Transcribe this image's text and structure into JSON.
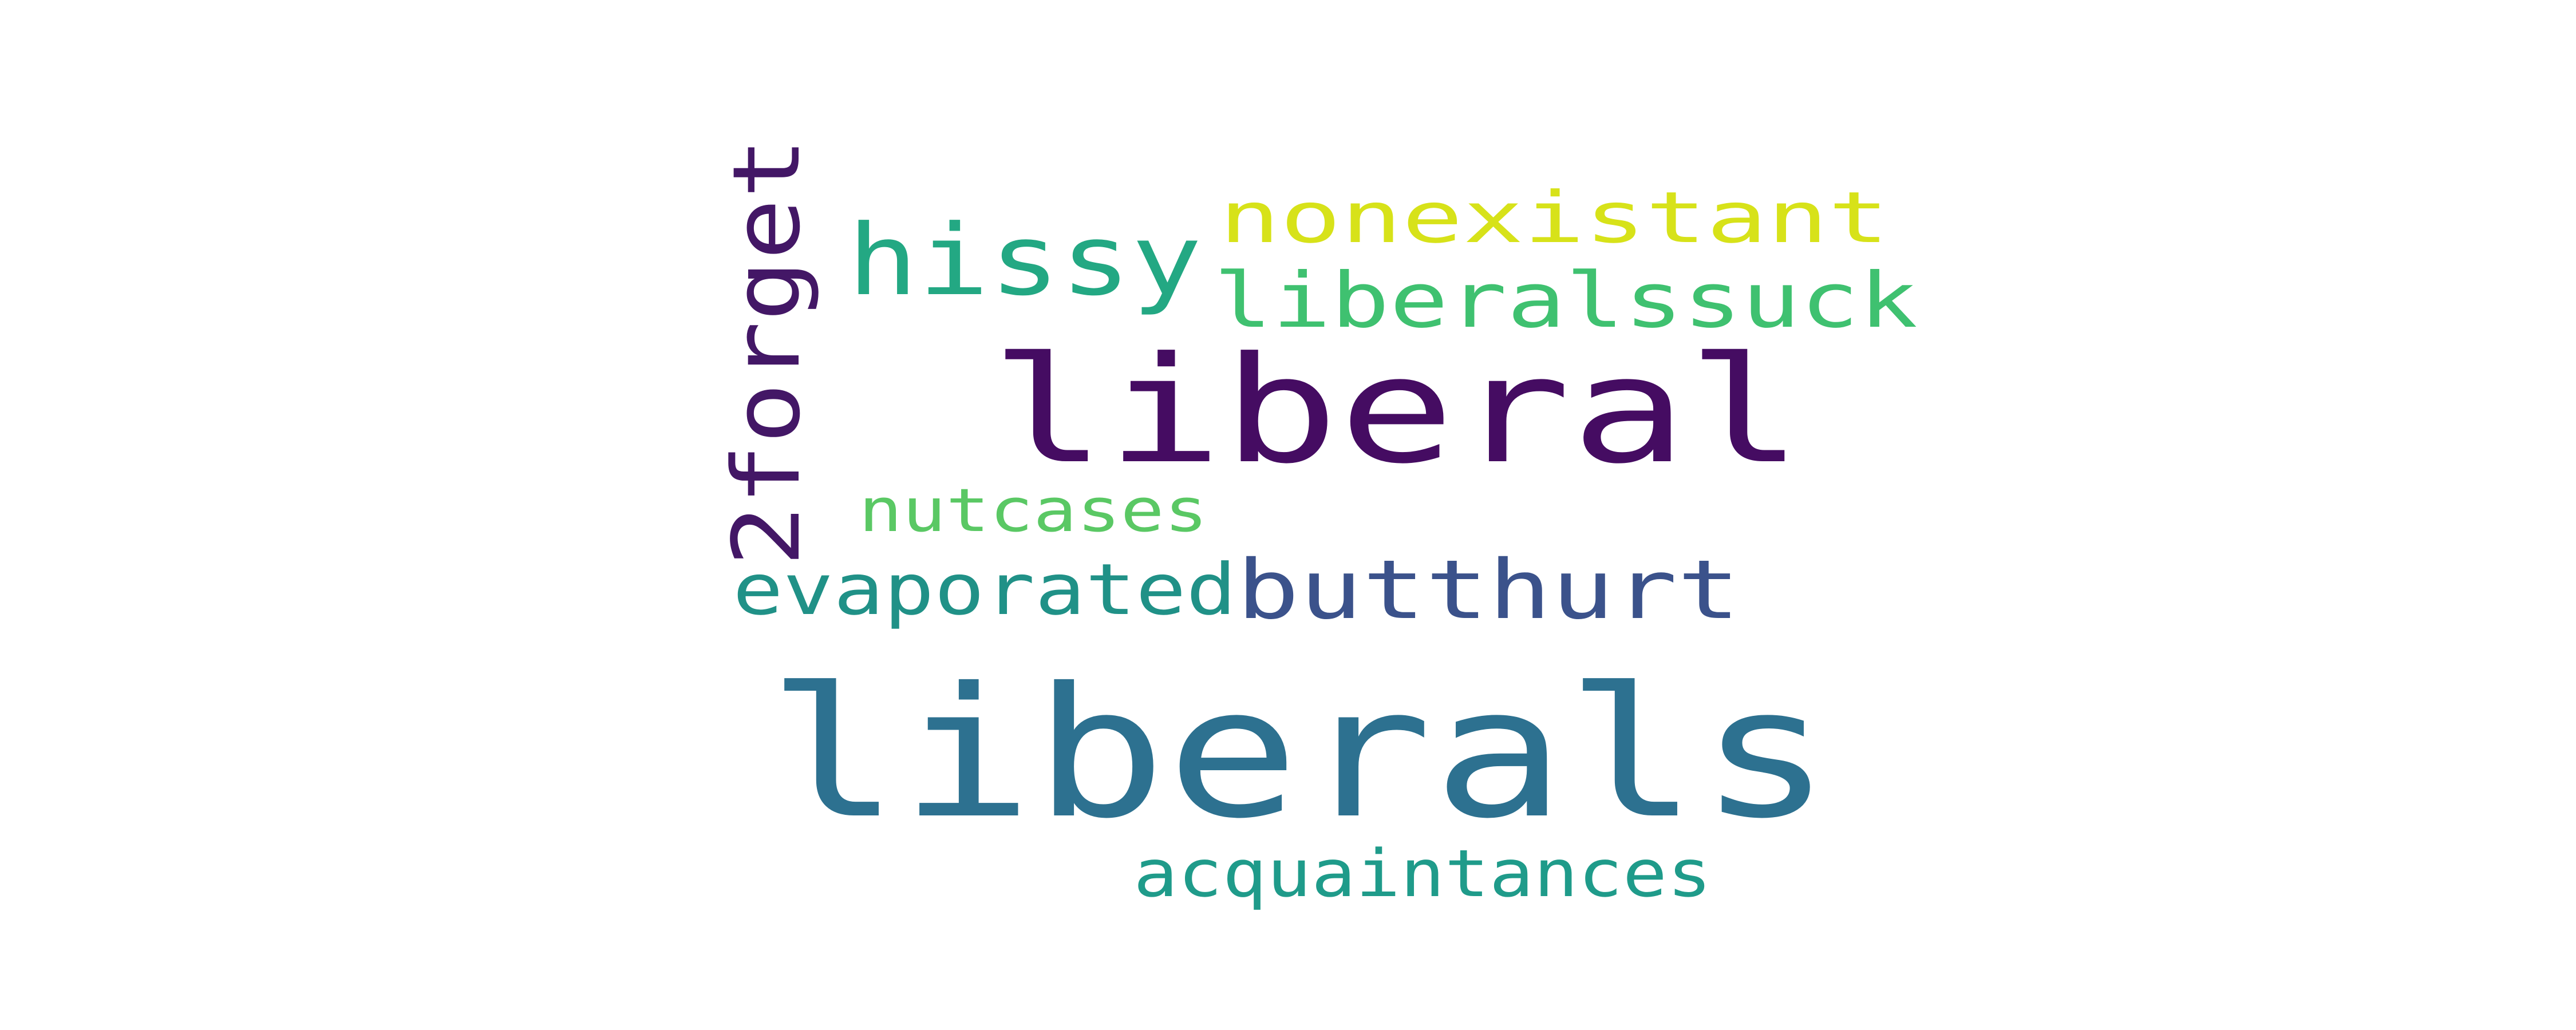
{
  "words": [
    {
      "key": "liberals",
      "text": "liberals",
      "color": "#2d7190"
    },
    {
      "key": "liberal",
      "text": "liberal",
      "color": "#450c62"
    },
    {
      "key": "hissy",
      "text": "hissy",
      "color": "#23a883"
    },
    {
      "key": "nonexistant",
      "text": "nonexistant",
      "color": "#d7e219"
    },
    {
      "key": "liberalssuck",
      "text": "liberalssuck",
      "color": "#3fc170"
    },
    {
      "key": "2forget",
      "text": "2forget",
      "color": "#431766"
    },
    {
      "key": "nutcases",
      "text": "nutcases",
      "color": "#5ac864"
    },
    {
      "key": "evaporated",
      "text": "evaporated",
      "color": "#209187"
    },
    {
      "key": "butthurt",
      "text": "butthurt",
      "color": "#3b528b"
    },
    {
      "key": "acquaintances",
      "text": "acquaintances",
      "color": "#1f9b8a"
    }
  ]
}
